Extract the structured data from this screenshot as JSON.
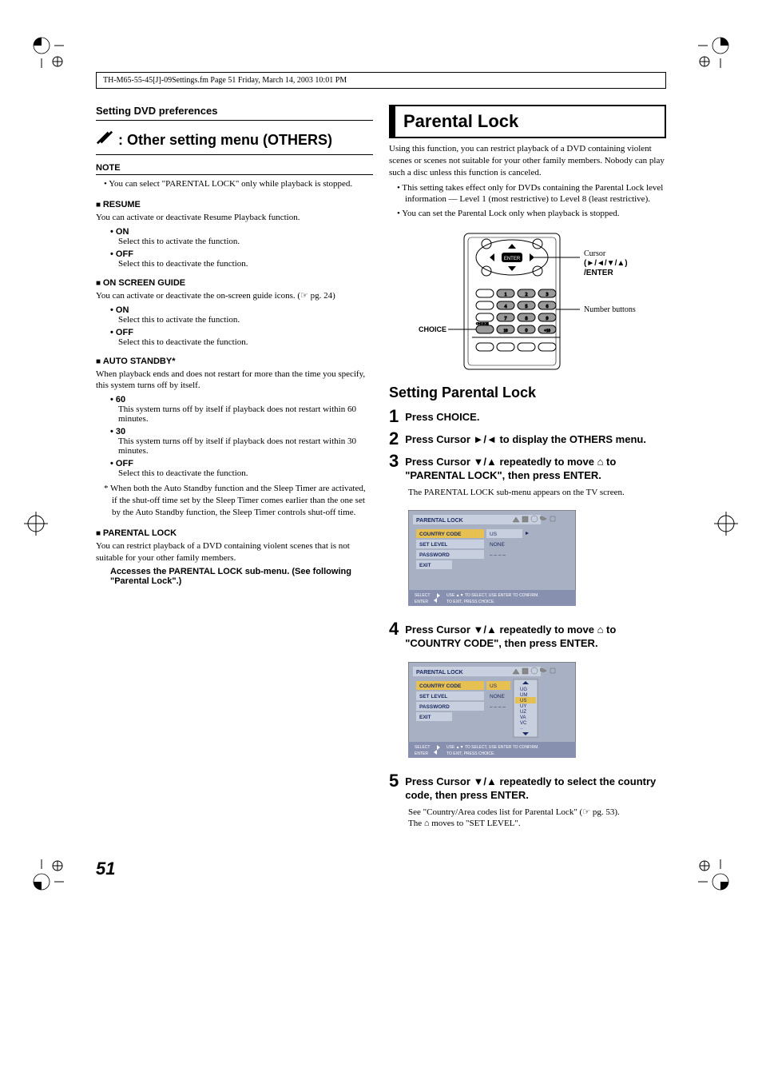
{
  "header_line": "TH-M65-55-45[J]-09Settings.fm  Page 51  Friday, March 14, 2003  10:01 PM",
  "page_number": "51",
  "left": {
    "section_title": "Setting DVD preferences",
    "menu_heading": ": Other setting menu (OTHERS)",
    "note_label": "NOTE",
    "note_text": "You can select \"PARENTAL LOCK\" only while playback is stopped.",
    "resume": {
      "h": "RESUME",
      "intro": "You can activate or deactivate Resume Playback function.",
      "on": "ON",
      "on_desc": "Select this to activate the function.",
      "off": "OFF",
      "off_desc": "Select this to deactivate the function."
    },
    "osg": {
      "h": "ON SCREEN GUIDE",
      "intro": "You can activate or deactivate the on-screen guide icons. (☞ pg. 24)",
      "on": "ON",
      "on_desc": "Select this to activate the function.",
      "off": "OFF",
      "off_desc": "Select this to deactivate the function."
    },
    "auto": {
      "h": "AUTO STANDBY*",
      "intro": "When playback ends and does not restart for more than the time you specify, this system turns off by itself.",
      "o60": "60",
      "o60_desc": "This system turns off by itself if playback does not restart within 60 minutes.",
      "o30": "30",
      "o30_desc": "This system turns off by itself if playback does not restart within 30 minutes.",
      "off": "OFF",
      "off_desc": "Select this to deactivate the function.",
      "footnote": "* When both the Auto Standby function and the Sleep Timer are activated, if the shut-off time set by the Sleep Timer comes earlier than the one set by the Auto Standby function, the Sleep Timer controls shut-off time."
    },
    "plock": {
      "h": "PARENTAL LOCK",
      "intro": "You can restrict playback of a DVD containing violent scenes that is not suitable for your other family members.",
      "desc": "Accesses the PARENTAL LOCK sub-menu. (See following \"Parental Lock\".)"
    }
  },
  "right": {
    "title": "Parental Lock",
    "intro": "Using this function, you can restrict playback of a DVD containing violent scenes or scenes not suitable for your other family members. Nobody can play such a disc unless this function is canceled.",
    "b1": "This setting takes effect only for DVDs containing the Parental Lock level information — Level 1 (most restrictive) to Level 8 (least restrictive).",
    "b2": "You can set the Parental Lock only when playback is stopped.",
    "remote": {
      "choice_label": "CHOICE",
      "cursor_top": "Cursor",
      "cursor_sym": "(►/◄/▼/▲)",
      "cursor_enter": "/ENTER",
      "number_label": "Number buttons",
      "enter_btn": "ENTER"
    },
    "setting_h": "Setting Parental Lock",
    "steps": {
      "s1": "Press CHOICE.",
      "s2": "Press Cursor ►/◄ to display the OTHERS menu.",
      "s3": "Press Cursor ▼/▲ repeatedly to move ⌂ to \"PARENTAL LOCK\", then press ENTER.",
      "s3_sub": "The PARENTAL LOCK sub-menu appears on the TV screen.",
      "s4": "Press Cursor ▼/▲ repeatedly to move ⌂ to \"COUNTRY CODE\", then press ENTER.",
      "s5": "Press Cursor ▼/▲ repeatedly to select the country code, then press ENTER.",
      "s5_sub1": "See \"Country/Area codes list for Parental Lock\" (☞ pg. 53).",
      "s5_sub2": "The ⌂ moves to \"SET LEVEL\"."
    },
    "menu1": {
      "title": "PARENTAL LOCK",
      "r1": "COUNTRY CODE",
      "v1": "US",
      "r2": "SET LEVEL",
      "v2": "NONE",
      "r3": "PASSWORD",
      "v3": "– – – –",
      "r4": "EXIT",
      "hint_sel": "SELECT",
      "hint_ent": "ENTER",
      "hint_txt1": "USE ▲▼ TO SELECT, USE ENTER TO CONFIRM.",
      "hint_txt2": "TO EXIT, PRESS CHOICE."
    },
    "menu2": {
      "title": "PARENTAL LOCK",
      "r1": "COUNTRY CODE",
      "v1": "US",
      "r2": "SET LEVEL",
      "v2": "NONE",
      "r3": "PASSWORD",
      "v3": "– – – –",
      "r4": "EXIT",
      "list": [
        "UG",
        "UM",
        "US",
        "UY",
        "UZ",
        "VA",
        "VC",
        "··"
      ],
      "hint_sel": "SELECT",
      "hint_ent": "ENTER",
      "hint_txt1": "USE ▲▼ TO SELECT, USE ENTER TO CONFIRM.",
      "hint_txt2": "TO EXIT, PRESS CHOICE."
    }
  },
  "colors": {
    "menu_bg": "#a8b0c4",
    "menu_panel": "#a8b0c4",
    "menu_field": "#c8d0e0",
    "menu_highlight": "#e6c050",
    "menu_text": "#1a2a60",
    "menu_hint_bg": "#8890b0",
    "icon_gray": "#888"
  }
}
